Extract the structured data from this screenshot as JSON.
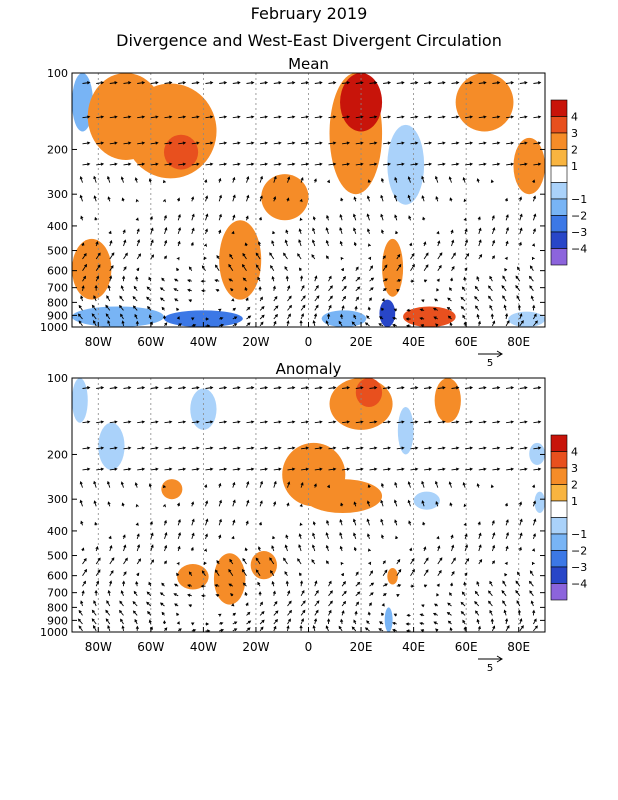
{
  "page": {
    "title": "February 2019",
    "subtitle": "Divergence and West-East Divergent Circulation"
  },
  "chart_data": [
    {
      "type": "heatmap",
      "title": "Mean",
      "x_ticks": [
        "80W",
        "60W",
        "40W",
        "20W",
        "0",
        "20E",
        "40E",
        "60E",
        "80E"
      ],
      "x_tick_values": [
        -80,
        -60,
        -40,
        -20,
        0,
        20,
        40,
        60,
        80
      ],
      "x_range": [
        -90,
        90
      ],
      "y_ticks": [
        "100",
        "200",
        "300",
        "400",
        "500",
        "600",
        "700",
        "800",
        "900",
        "1000"
      ],
      "y_tick_values": [
        100,
        200,
        300,
        400,
        500,
        600,
        700,
        800,
        900,
        1000
      ],
      "y_range": [
        100,
        1000
      ],
      "y_scale": "log",
      "grid": true,
      "colorbar": {
        "labels": [
          "4",
          "3",
          "2",
          "1",
          "−1",
          "−2",
          "−3",
          "−4"
        ],
        "colors": [
          "#c8140a",
          "#e8501e",
          "#f58c28",
          "#f8b440",
          "#ffffff",
          "#aad2fa",
          "#78b4f5",
          "#3c78e6",
          "#2846c8",
          "#8c64dc"
        ],
        "placement": "right"
      },
      "vector_reference": "5",
      "regions": [
        {
          "lon": [
            -90,
            -82
          ],
          "p": [
            100,
            170
          ],
          "value": -2
        },
        {
          "lon": [
            -84,
            -55
          ],
          "p": [
            100,
            220
          ],
          "value": 2
        },
        {
          "lon": [
            -70,
            -35
          ],
          "p": [
            110,
            260
          ],
          "value": 2
        },
        {
          "lon": [
            -55,
            -42
          ],
          "p": [
            175,
            240
          ],
          "value": 3
        },
        {
          "lon": [
            -90,
            -75
          ],
          "p": [
            450,
            780
          ],
          "value": 2
        },
        {
          "lon": [
            -34,
            -18
          ],
          "p": [
            380,
            780
          ],
          "value": 2
        },
        {
          "lon": [
            -18,
            0
          ],
          "p": [
            250,
            380
          ],
          "value": 2
        },
        {
          "lon": [
            8,
            28
          ],
          "p": [
            100,
            300
          ],
          "value": 2
        },
        {
          "lon": [
            12,
            28
          ],
          "p": [
            100,
            170
          ],
          "value": 4
        },
        {
          "lon": [
            30,
            44
          ],
          "p": [
            160,
            330
          ],
          "value": -1
        },
        {
          "lon": [
            56,
            78
          ],
          "p": [
            100,
            170
          ],
          "value": 2
        },
        {
          "lon": [
            78,
            90
          ],
          "p": [
            180,
            300
          ],
          "value": 2
        },
        {
          "lon": [
            28,
            36
          ],
          "p": [
            450,
            760
          ],
          "value": 2
        },
        {
          "lon": [
            -90,
            -55
          ],
          "p": [
            830,
            1000
          ],
          "value": -2
        },
        {
          "lon": [
            -55,
            -25
          ],
          "p": [
            860,
            1000
          ],
          "value": -3
        },
        {
          "lon": [
            5,
            22
          ],
          "p": [
            860,
            1000
          ],
          "value": -2
        },
        {
          "lon": [
            27,
            33
          ],
          "p": [
            780,
            1000
          ],
          "value": -4
        },
        {
          "lon": [
            36,
            56
          ],
          "p": [
            830,
            1000
          ],
          "value": 3
        },
        {
          "lon": [
            76,
            90
          ],
          "p": [
            870,
            1000
          ],
          "value": -1
        }
      ]
    },
    {
      "type": "heatmap",
      "title": "Anomaly",
      "x_ticks": [
        "80W",
        "60W",
        "40W",
        "20W",
        "0",
        "20E",
        "40E",
        "60E",
        "80E"
      ],
      "x_tick_values": [
        -80,
        -60,
        -40,
        -20,
        0,
        20,
        40,
        60,
        80
      ],
      "x_range": [
        -90,
        90
      ],
      "y_ticks": [
        "100",
        "200",
        "300",
        "400",
        "500",
        "600",
        "700",
        "800",
        "900",
        "1000"
      ],
      "y_tick_values": [
        100,
        200,
        300,
        400,
        500,
        600,
        700,
        800,
        900,
        1000
      ],
      "y_range": [
        100,
        1000
      ],
      "y_scale": "log",
      "grid": true,
      "colorbar": {
        "labels": [
          "4",
          "3",
          "2",
          "1",
          "−1",
          "−2",
          "−3",
          "−4"
        ],
        "colors": [
          "#c8140a",
          "#e8501e",
          "#f58c28",
          "#f8b440",
          "#ffffff",
          "#aad2fa",
          "#78b4f5",
          "#3c78e6",
          "#2846c8",
          "#8c64dc"
        ],
        "placement": "right"
      },
      "vector_reference": "5",
      "regions": [
        {
          "lon": [
            -90,
            -84
          ],
          "p": [
            100,
            150
          ],
          "value": -1
        },
        {
          "lon": [
            -80,
            -70
          ],
          "p": [
            150,
            230
          ],
          "value": -1
        },
        {
          "lon": [
            -45,
            -35
          ],
          "p": [
            110,
            160
          ],
          "value": -1
        },
        {
          "lon": [
            8,
            32
          ],
          "p": [
            100,
            160
          ],
          "value": 2
        },
        {
          "lon": [
            18,
            28
          ],
          "p": [
            100,
            130
          ],
          "value": 3
        },
        {
          "lon": [
            48,
            58
          ],
          "p": [
            100,
            150
          ],
          "value": 2
        },
        {
          "lon": [
            34,
            40
          ],
          "p": [
            130,
            200
          ],
          "value": -1
        },
        {
          "lon": [
            84,
            90
          ],
          "p": [
            180,
            220
          ],
          "value": -1
        },
        {
          "lon": [
            -10,
            14
          ],
          "p": [
            180,
            320
          ],
          "value": 2
        },
        {
          "lon": [
            -2,
            28
          ],
          "p": [
            250,
            340
          ],
          "value": 2
        },
        {
          "lon": [
            -56,
            -48
          ],
          "p": [
            250,
            300
          ],
          "value": 2
        },
        {
          "lon": [
            -50,
            -38
          ],
          "p": [
            540,
            680
          ],
          "value": 2
        },
        {
          "lon": [
            -36,
            -24
          ],
          "p": [
            490,
            780
          ],
          "value": 2
        },
        {
          "lon": [
            -22,
            -12
          ],
          "p": [
            480,
            620
          ],
          "value": 2
        },
        {
          "lon": [
            30,
            34
          ],
          "p": [
            560,
            650
          ],
          "value": 2
        },
        {
          "lon": [
            29,
            32
          ],
          "p": [
            800,
            1000
          ],
          "value": -2
        },
        {
          "lon": [
            40,
            50
          ],
          "p": [
            280,
            330
          ],
          "value": -1
        },
        {
          "lon": [
            86,
            90
          ],
          "p": [
            280,
            340
          ],
          "value": -1
        }
      ]
    }
  ]
}
